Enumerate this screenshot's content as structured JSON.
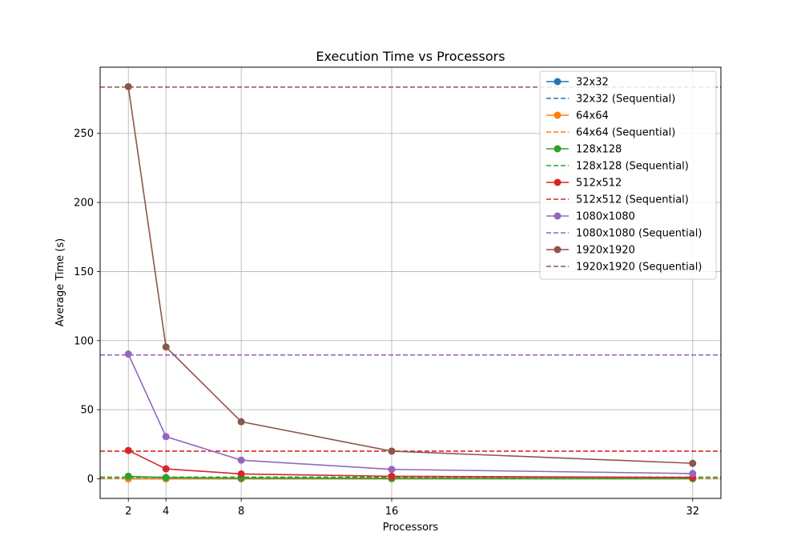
{
  "chart_data": {
    "type": "line",
    "title": "Execution Time vs Processors",
    "xlabel": "Processors",
    "ylabel": "Average Time (s)",
    "x": [
      2,
      4,
      8,
      16,
      32
    ],
    "xticks": [
      2,
      4,
      8,
      16,
      32
    ],
    "yticks": [
      0,
      50,
      100,
      150,
      200,
      250
    ],
    "xlim": [
      0.5,
      33.5
    ],
    "ylim": [
      -14.2,
      297.9
    ],
    "grid": true,
    "legend_position": "top-right",
    "series": [
      {
        "name": "32x32",
        "color": "#1f77b4",
        "values": [
          0.05,
          0.04,
          0.03,
          0.03,
          0.04
        ]
      },
      {
        "name": "64x64",
        "color": "#ff7f0e",
        "values": [
          0.2,
          0.12,
          0.08,
          0.06,
          0.08
        ]
      },
      {
        "name": "128x128",
        "color": "#2ca02c",
        "values": [
          1.8,
          0.9,
          0.5,
          0.35,
          0.3
        ]
      },
      {
        "name": "512x512",
        "color": "#d62728",
        "values": [
          20.5,
          7.2,
          3.5,
          1.8,
          1.0
        ]
      },
      {
        "name": "1080x1080",
        "color": "#9467bd",
        "values": [
          90.3,
          30.5,
          13.5,
          6.8,
          3.8
        ]
      },
      {
        "name": "1920x1920",
        "color": "#8c564b",
        "values": [
          283.8,
          95.4,
          41.3,
          20.0,
          11.2
        ]
      }
    ],
    "sequential": [
      {
        "name": "32x32 (Sequential)",
        "color": "#1f77b4",
        "value": 0.08
      },
      {
        "name": "64x64 (Sequential)",
        "color": "#ff7f0e",
        "value": 0.3
      },
      {
        "name": "128x128 (Sequential)",
        "color": "#2ca02c",
        "value": 1.2
      },
      {
        "name": "512x512 (Sequential)",
        "color": "#d62728",
        "value": 20.0
      },
      {
        "name": "1080x1080 (Sequential)",
        "color": "#9467bd",
        "value": 89.6
      },
      {
        "name": "1920x1920 (Sequential)",
        "color": "#8c564b",
        "value": 283.5
      }
    ]
  }
}
